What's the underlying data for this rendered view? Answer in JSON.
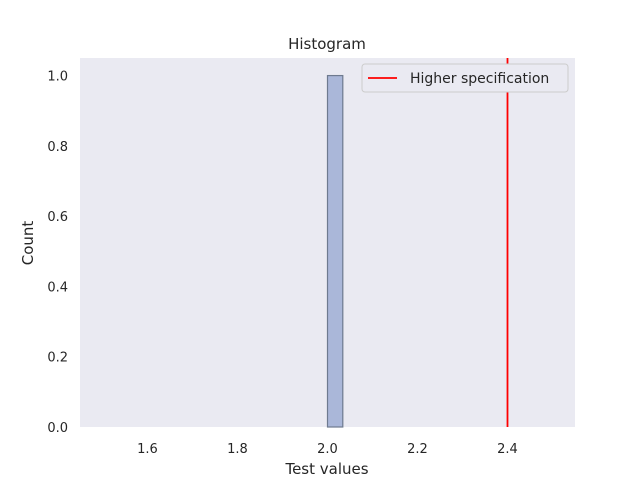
{
  "chart_data": {
    "type": "bar",
    "title": "Histogram",
    "xlabel": "Test values",
    "ylabel": "Count",
    "xlim": [
      1.45,
      2.55
    ],
    "ylim": [
      0,
      1.05
    ],
    "xticks": [
      "1.6",
      "1.8",
      "2.0",
      "2.2",
      "2.4"
    ],
    "yticks": [
      "0.0",
      "0.2",
      "0.4",
      "0.6",
      "0.8",
      "1.0"
    ],
    "bins": [
      {
        "start": 2.0,
        "end": 2.034,
        "count": 1
      }
    ],
    "spec_lines": [
      {
        "name": "Higher specification",
        "x": 2.4,
        "color": "#ff0000"
      }
    ],
    "legend_position": "upper-right",
    "grid": false,
    "colors": {
      "background": "#eaeaf2",
      "bar_fill": "#aab7d9",
      "bar_edge": "#6e7a8f"
    }
  }
}
